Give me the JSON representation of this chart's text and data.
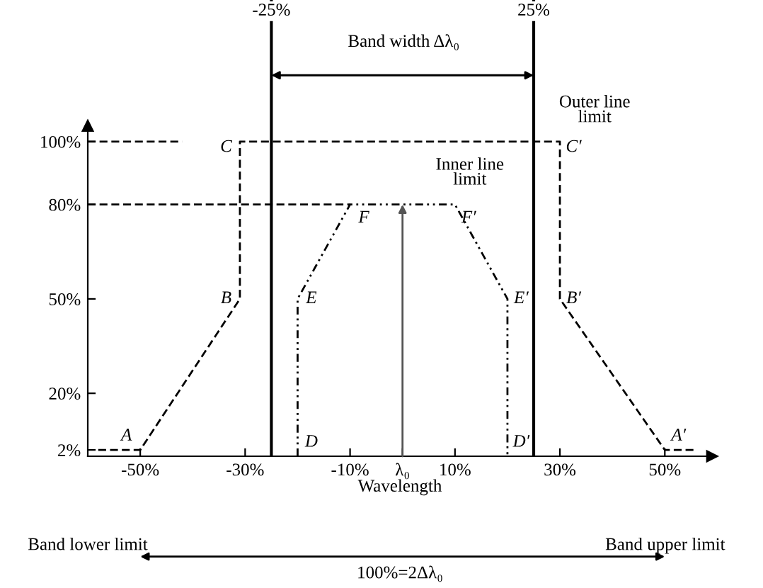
{
  "chart_data": {
    "type": "line",
    "xlabel": "Wavelength",
    "xlim": [
      -60,
      59
    ],
    "ylim": [
      0,
      145
    ],
    "xticks": [
      {
        "value": -50,
        "label": "-50%"
      },
      {
        "value": -30,
        "label": "-30%"
      },
      {
        "value": -10,
        "label": "-10%"
      },
      {
        "value": 0,
        "label": "λ₀"
      },
      {
        "value": 10,
        "label": "10%"
      },
      {
        "value": 30,
        "label": "30%"
      },
      {
        "value": 50,
        "label": "50%"
      }
    ],
    "yticks": [
      {
        "value": 2,
        "label": "2%"
      },
      {
        "value": 20,
        "label": "20%"
      },
      {
        "value": 50,
        "label": "50%"
      },
      {
        "value": 80,
        "label": "80%"
      },
      {
        "value": 100,
        "label": "100%"
      }
    ],
    "series": [
      {
        "color": "#000000",
        "line_style": "dashed",
        "x": [
          -58,
          -50,
          -31,
          -31,
          30,
          30,
          50,
          56
        ],
        "values": [
          2,
          2,
          50,
          100,
          100,
          50,
          2,
          2
        ]
      },
      {
        "color": "#000000",
        "line_style": "dotted",
        "x": [
          -20,
          -20,
          -10,
          10,
          20,
          20
        ],
        "values": [
          0,
          50,
          80,
          80,
          50,
          0
        ]
      },
      {
        "color": "#000000",
        "line_style": "dashed",
        "x": [
          -60,
          -42
        ],
        "values": [
          100,
          100
        ]
      },
      {
        "color": "#000000",
        "line_style": "dashed",
        "x": [
          -60,
          -10
        ],
        "values": [
          80,
          80
        ]
      }
    ],
    "ref_lines": [
      {
        "axis": "x",
        "value": -25,
        "label": "-25%",
        "color": "#000000",
        "line_style": "solid"
      },
      {
        "axis": "x",
        "value": 25,
        "label": "25%",
        "color": "#000000",
        "line_style": "solid"
      }
    ],
    "annotations": [
      {
        "text": "A",
        "x": -50,
        "y": 2
      },
      {
        "text": "B",
        "x": -31,
        "y": 50
      },
      {
        "text": "C",
        "x": -31,
        "y": 100
      },
      {
        "text": "D",
        "x": -20,
        "y": 0
      },
      {
        "text": "E",
        "x": -20,
        "y": 50
      },
      {
        "text": "F",
        "x": -10,
        "y": 80
      },
      {
        "text": "A′",
        "x": 50,
        "y": 2
      },
      {
        "text": "B′",
        "x": 30,
        "y": 50
      },
      {
        "text": "C′",
        "x": 30,
        "y": 100
      },
      {
        "text": "D′",
        "x": 20,
        "y": 0
      },
      {
        "text": "E′",
        "x": 20,
        "y": 50
      },
      {
        "text": "F′",
        "x": 10,
        "y": 80
      },
      "Outer line\nlimit",
      "Inner line\nlimit",
      "Band width Δλ₀",
      "Band lower limit",
      "Band upper limit",
      "100%=2Δλ₀"
    ]
  }
}
